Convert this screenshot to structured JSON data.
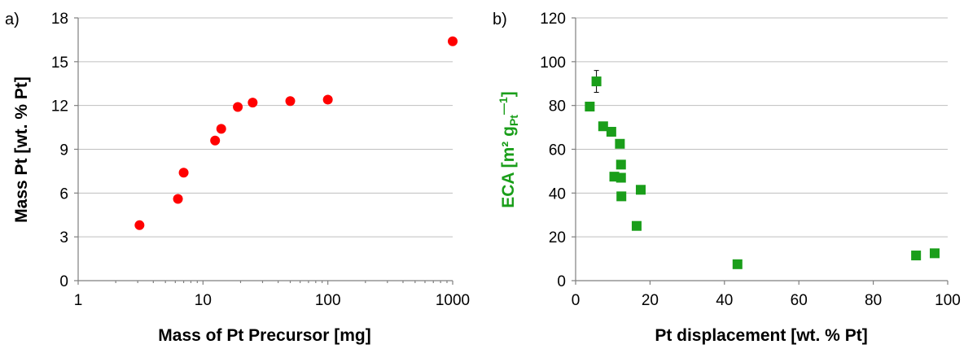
{
  "chart_data": [
    {
      "panel_label": "a)",
      "type": "scatter",
      "xlabel": "Mass of Pt Precursor [mg]",
      "ylabel": "Mass Pt [wt. % Pt]",
      "xscale": "log",
      "xlim": [
        1,
        1000
      ],
      "ylim": [
        0,
        18
      ],
      "xticks": [
        "1",
        "10",
        "100",
        "1000"
      ],
      "yticks": [
        "0",
        "3",
        "6",
        "9",
        "12",
        "15",
        "18"
      ],
      "xtick_values": [
        1,
        10,
        100,
        1000
      ],
      "ytick_values": [
        0,
        3,
        6,
        9,
        12,
        15,
        18
      ],
      "grid": "horizontal",
      "marker": "circle",
      "color": "#ff0000",
      "points": [
        {
          "x": 3.1,
          "y": 3.8
        },
        {
          "x": 6.3,
          "y": 5.6
        },
        {
          "x": 7.0,
          "y": 7.4
        },
        {
          "x": 12.5,
          "y": 9.6
        },
        {
          "x": 14.0,
          "y": 10.4
        },
        {
          "x": 19.0,
          "y": 11.9
        },
        {
          "x": 25.0,
          "y": 12.2
        },
        {
          "x": 50.0,
          "y": 12.3
        },
        {
          "x": 100.0,
          "y": 12.4
        },
        {
          "x": 1000.0,
          "y": 16.4
        }
      ]
    },
    {
      "panel_label": "b)",
      "type": "scatter",
      "xlabel": "Pt displacement [wt. % Pt]",
      "ylabel": "ECA [m² g",
      "ylabel_sub": "Pt",
      "ylabel_sup": "—1",
      "ylabel_end": "]",
      "xlim": [
        0,
        100
      ],
      "ylim": [
        0,
        120
      ],
      "xticks": [
        "0",
        "20",
        "40",
        "60",
        "80",
        "100"
      ],
      "yticks": [
        "0",
        "20",
        "40",
        "60",
        "80",
        "100",
        "120"
      ],
      "xtick_values": [
        0,
        20,
        40,
        60,
        80,
        100
      ],
      "ytick_values": [
        0,
        20,
        40,
        60,
        80,
        100,
        120
      ],
      "grid": "horizontal",
      "marker": "square",
      "color": "#1a9e1a",
      "points": [
        {
          "x": 3.8,
          "y": 79.5
        },
        {
          "x": 5.6,
          "y": 91.0,
          "err": 5
        },
        {
          "x": 7.4,
          "y": 70.5
        },
        {
          "x": 9.6,
          "y": 68.0,
          "err": 2
        },
        {
          "x": 10.4,
          "y": 47.5
        },
        {
          "x": 11.9,
          "y": 62.5
        },
        {
          "x": 12.2,
          "y": 53.0
        },
        {
          "x": 12.2,
          "y": 47.0
        },
        {
          "x": 12.3,
          "y": 38.5
        },
        {
          "x": 16.4,
          "y": 25.0
        },
        {
          "x": 17.5,
          "y": 41.5
        },
        {
          "x": 43.5,
          "y": 7.5
        },
        {
          "x": 91.5,
          "y": 11.5
        },
        {
          "x": 96.5,
          "y": 12.5
        }
      ]
    }
  ]
}
